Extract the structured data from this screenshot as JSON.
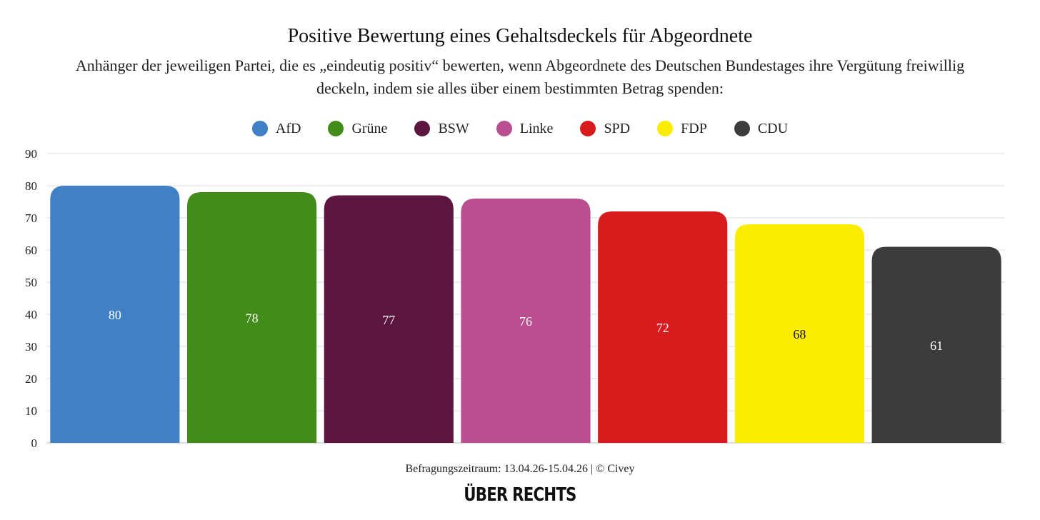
{
  "title": "Positive Bewertung eines Gehaltsdeckels für Abgeordnete",
  "subtitle": "Anhänger der jeweiligen Partei, die es „eindeutig positiv“ bewerten, wenn Abgeordnete des Deutschen Bundestages ihre Vergütung freiwillig deckeln, indem sie alles über einem bestimmten Betrag spenden:",
  "footer": "Befragungszeitraum: 13.04.26-15.04.26 | © Civey",
  "logo_text": "ÜBER RECHTS",
  "chart_data": {
    "type": "bar",
    "categories": [
      "AfD",
      "Grüne",
      "BSW",
      "Linke",
      "SPD",
      "FDP",
      "CDU"
    ],
    "values": [
      80,
      78,
      77,
      76,
      72,
      68,
      61
    ],
    "colors": [
      "#4080c4",
      "#428c1a",
      "#5c1640",
      "#bb4e90",
      "#d81b1c",
      "#fcec00",
      "#3c3c3c"
    ],
    "label_colors": [
      "#ffffff",
      "#ffffff",
      "#ffffff",
      "#ffffff",
      "#ffffff",
      "#111111",
      "#ffffff"
    ],
    "ylim": [
      0,
      90
    ],
    "yticks": [
      0,
      10,
      20,
      30,
      40,
      50,
      60,
      70,
      80,
      90
    ],
    "grid": true,
    "legend_position": "top-center",
    "data_labels": true
  }
}
